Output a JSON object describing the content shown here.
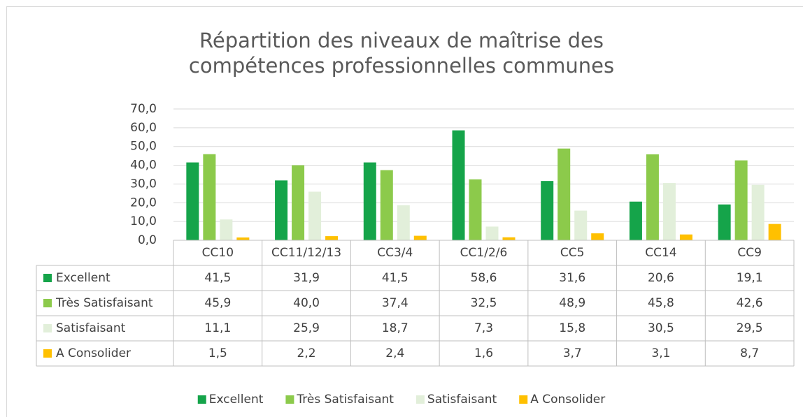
{
  "chart_data": {
    "type": "bar",
    "title": "Répartition des niveaux de maîtrise des compétences professionnelles communes",
    "categories": [
      "CC10",
      "CC11/12/13",
      "CC3/4",
      "CC1/2/6",
      "CC5",
      "CC14",
      "CC9"
    ],
    "series": [
      {
        "name": "Excellent",
        "color": "#15a44a",
        "values": [
          41.5,
          31.9,
          41.5,
          58.6,
          31.6,
          20.6,
          19.1
        ],
        "value_labels": [
          "41,5",
          "31,9",
          "41,5",
          "58,6",
          "31,6",
          "20,6",
          "19,1"
        ]
      },
      {
        "name": "Très Satisfaisant",
        "color": "#8cca4b",
        "values": [
          45.9,
          40.0,
          37.4,
          32.5,
          48.9,
          45.8,
          42.6
        ],
        "value_labels": [
          "45,9",
          "40,0",
          "37,4",
          "32,5",
          "48,9",
          "45,8",
          "42,6"
        ]
      },
      {
        "name": "Satisfaisant",
        "color": "#e2efda",
        "values": [
          11.1,
          25.9,
          18.7,
          7.3,
          15.8,
          30.5,
          29.5
        ],
        "value_labels": [
          "11,1",
          "25,9",
          "18,7",
          "7,3",
          "15,8",
          "30,5",
          "29,5"
        ]
      },
      {
        "name": "A Consolider",
        "color": "#ffc000",
        "values": [
          1.5,
          2.2,
          2.4,
          1.6,
          3.7,
          3.1,
          8.7
        ],
        "value_labels": [
          "1,5",
          "2,2",
          "2,4",
          "1,6",
          "3,7",
          "3,1",
          "8,7"
        ]
      }
    ],
    "ylim": [
      0,
      70
    ],
    "yticks": [
      {
        "value": 0,
        "label": "0,0"
      },
      {
        "value": 10,
        "label": "10,0"
      },
      {
        "value": 20,
        "label": "20,0"
      },
      {
        "value": 30,
        "label": "30,0"
      },
      {
        "value": 40,
        "label": "40,0"
      },
      {
        "value": 50,
        "label": "50,0"
      },
      {
        "value": 60,
        "label": "60,0"
      },
      {
        "value": 70,
        "label": "70,0"
      }
    ],
    "grid": true,
    "legend": "bottom"
  }
}
